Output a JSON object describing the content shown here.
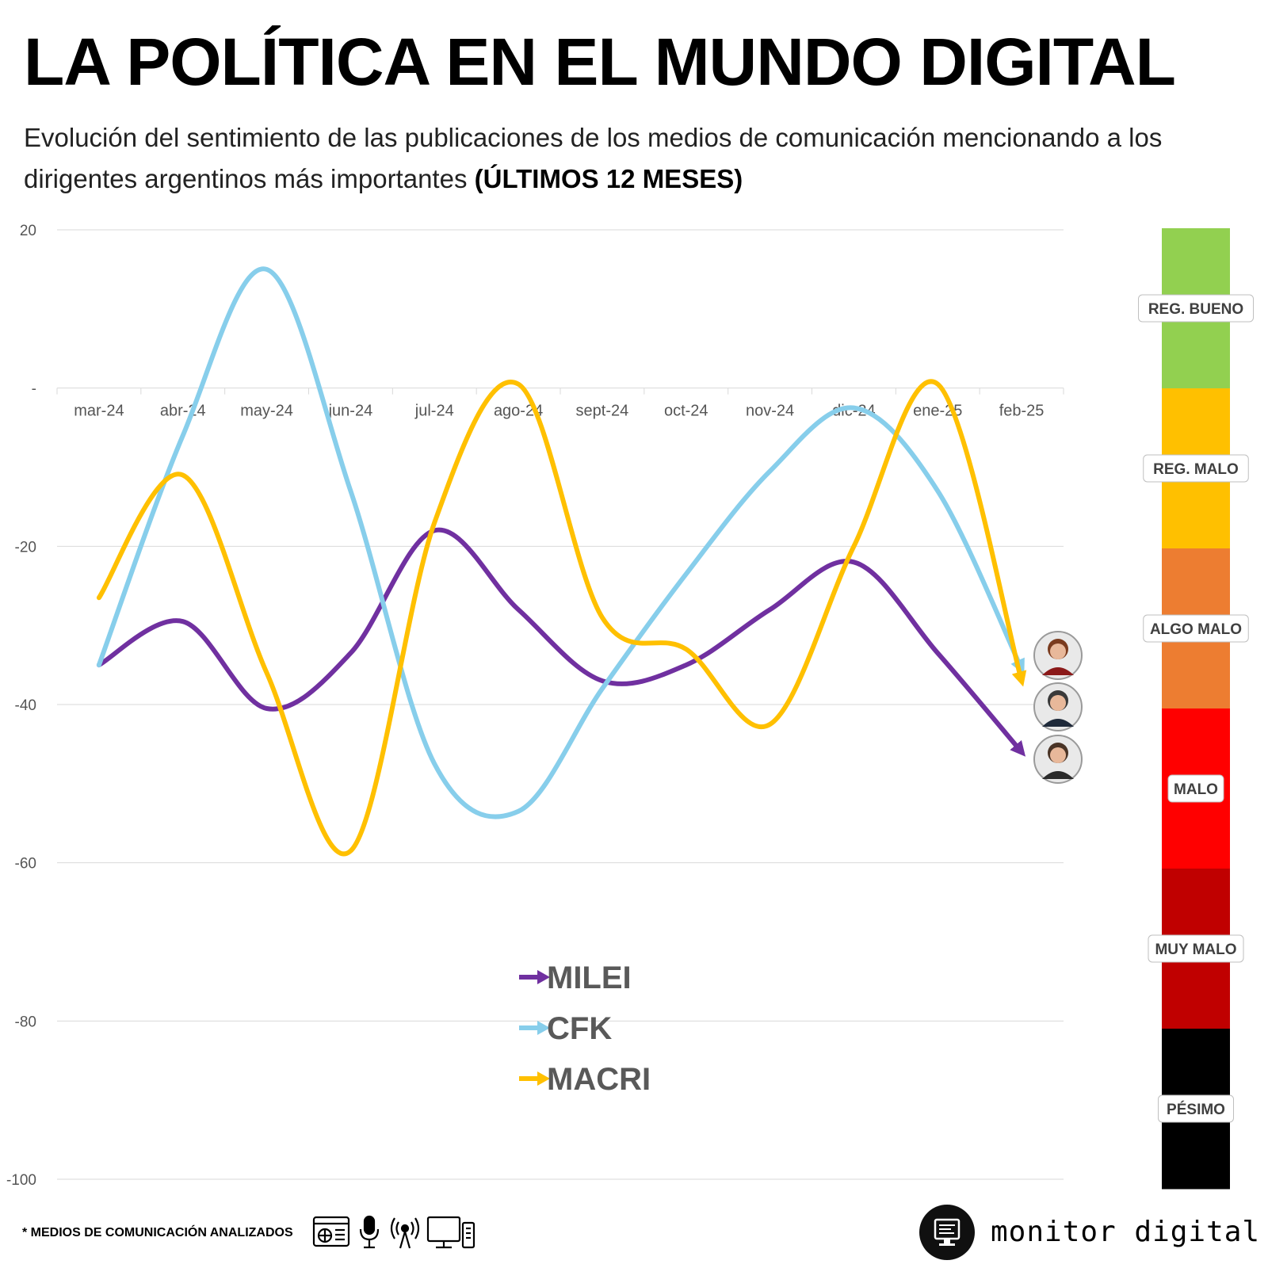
{
  "header": {
    "title": "LA POLÍTICA EN EL MUNDO DIGITAL",
    "subtitle": "Evolución del sentimiento de las publicaciones de los medios de comunicación mencionando a los dirigentes argentinos más importantes",
    "subtitle_bold": "(ÚLTIMOS 12 MESES)"
  },
  "chart_data": {
    "type": "line",
    "categories": [
      "mar-24",
      "abr-24",
      "may-24",
      "jun-24",
      "jul-24",
      "ago-24",
      "sept-24",
      "oct-24",
      "nov-24",
      "dic-24",
      "ene-25",
      "feb-25"
    ],
    "series": [
      {
        "name": "MILEI",
        "color": "#7030A0",
        "values": [
          -35,
          -29.5,
          -40.5,
          -33.5,
          -18,
          -28,
          -37,
          -35,
          -28,
          -22,
          -33.5,
          -46
        ]
      },
      {
        "name": "CFK",
        "color": "#87CEEB",
        "values": [
          -35,
          -6,
          15,
          -13,
          -47.5,
          -53.5,
          -38,
          -23.5,
          -10.5,
          -2.5,
          -13,
          -35.5
        ]
      },
      {
        "name": "MACRI",
        "color": "#FFC000",
        "values": [
          -26.5,
          -11,
          -36,
          -58.5,
          -17,
          0.5,
          -29,
          -33,
          -42.5,
          -20,
          0.5,
          -37
        ]
      }
    ],
    "y_tick_labels": [
      "20",
      "-",
      "-20",
      "-40",
      "-60",
      "-80",
      "-100"
    ],
    "y_tick_values": [
      20,
      0,
      -20,
      -40,
      -60,
      -80,
      -100
    ],
    "ylim": [
      -100,
      20
    ],
    "grid": true,
    "legend_position": "bottom-center",
    "sentiment_scale": [
      {
        "label": "REG. BUENO",
        "color": "#92D050"
      },
      {
        "label": "REG. MALO",
        "color": "#FFC000"
      },
      {
        "label": "ALGO MALO",
        "color": "#ED7D31"
      },
      {
        "label": "MALO",
        "color": "#FF0000"
      },
      {
        "label": "MUY MALO",
        "color": "#C00000"
      },
      {
        "label": "PÉSIMO",
        "color": "#000000"
      }
    ]
  },
  "footer": {
    "note": "* MEDIOS DE COMUNICACIÓN ANALIZADOS",
    "media_icons": [
      "web-news-icon",
      "microphone-icon",
      "broadcast-antenna-icon",
      "tv-monitor-icon"
    ],
    "brand": "monitor digital",
    "brand_logo_icon": "computer-monitor-icon"
  }
}
